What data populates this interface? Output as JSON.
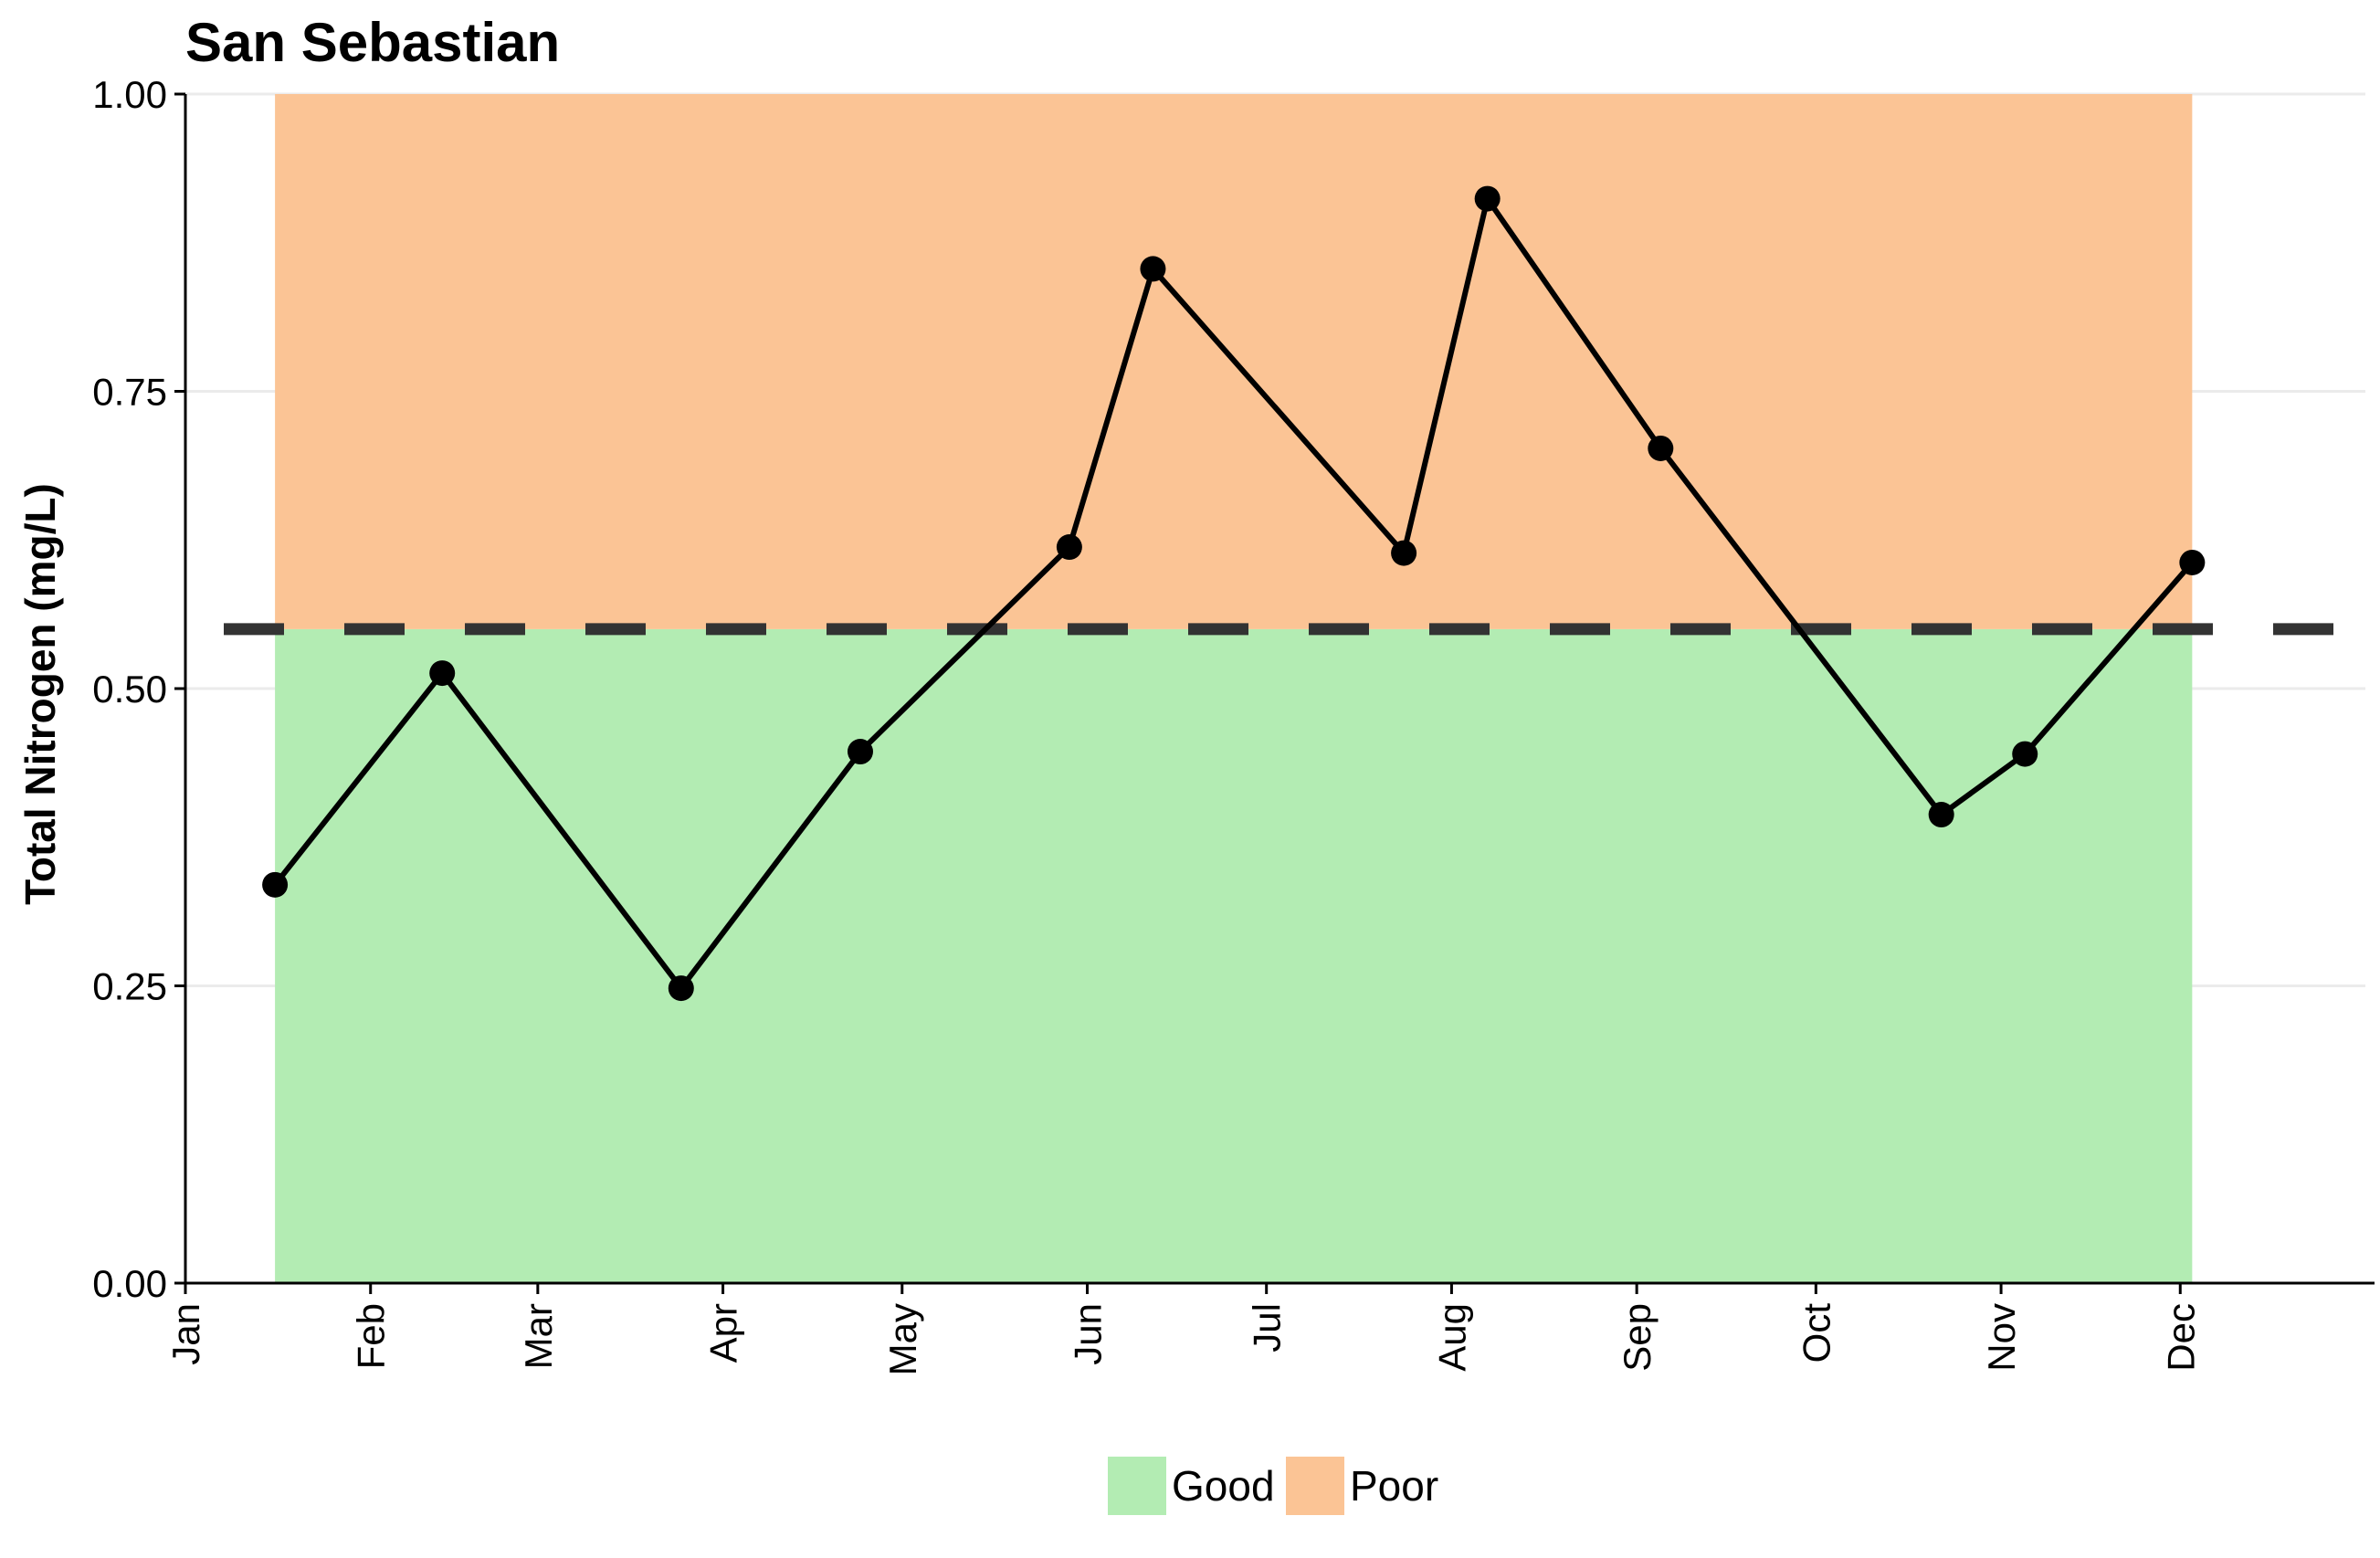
{
  "chart_data": {
    "type": "line",
    "title": "San Sebastian",
    "xlabel": "",
    "ylabel": "Total Nitrogen (mg/L)",
    "ylim": [
      0,
      1
    ],
    "yticks": [
      "0.00",
      "0.25",
      "0.50",
      "0.75",
      "1.00"
    ],
    "ytick_values": [
      0,
      0.25,
      0.5,
      0.75,
      1.0
    ],
    "xlim": [
      "Jan 1",
      "Dec 31"
    ],
    "xticks": [
      "Jan",
      "Feb",
      "Mar",
      "Apr",
      "May",
      "Jun",
      "Jul",
      "Aug",
      "Sep",
      "Oct",
      "Nov",
      "Dec"
    ],
    "threshold": 0.55,
    "bands": [
      {
        "name": "Good",
        "from": 0,
        "to": 0.55,
        "color": "#b3ecb3",
        "x_start": "Jan 16",
        "x_end": "Dec 3"
      },
      {
        "name": "Poor",
        "from": 0.55,
        "to": 1.0,
        "color": "#fbc495",
        "x_start": "Jan 16",
        "x_end": "Dec 3"
      }
    ],
    "series": [
      {
        "color": "#000000",
        "x": [
          "Jan 16",
          "Feb 13",
          "Mar 25",
          "Apr 24",
          "May 29",
          "Jun 12",
          "Jul 24",
          "Aug 7",
          "Sep 5",
          "Oct 22",
          "Nov 5",
          "Dec 3"
        ],
        "values": [
          0.335,
          0.513,
          0.248,
          0.447,
          0.619,
          0.853,
          0.614,
          0.912,
          0.702,
          0.394,
          0.445,
          0.606
        ]
      }
    ],
    "legend": {
      "position": "bottom",
      "items": [
        "Good",
        "Poor"
      ]
    },
    "grid": "horizontal"
  }
}
